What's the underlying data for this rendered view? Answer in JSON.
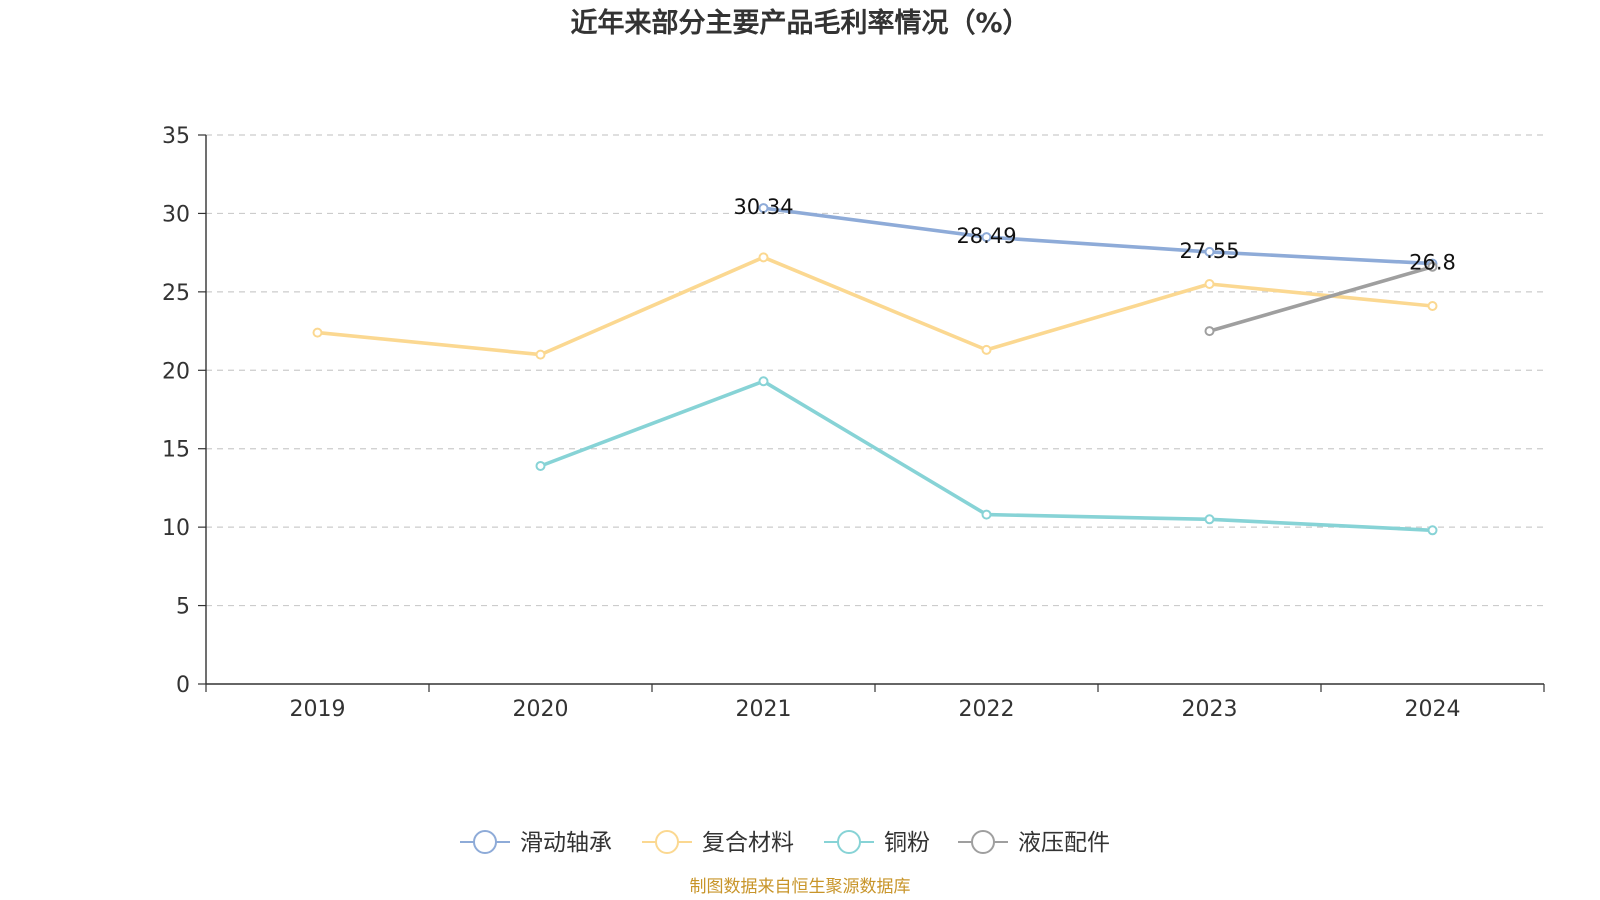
{
  "chart_data": {
    "type": "line",
    "title": "近年来部分主要产品毛利率情况（%）",
    "categories": [
      "2019",
      "2020",
      "2021",
      "2022",
      "2023",
      "2024"
    ],
    "ylim": [
      0,
      35
    ],
    "yticks": [
      0,
      5,
      10,
      15,
      20,
      25,
      30,
      35
    ],
    "grid": true,
    "legend_position": "bottom",
    "series": [
      {
        "name": "滑动轴承",
        "color": "#8eabd8",
        "values": [
          null,
          null,
          30.34,
          28.49,
          27.55,
          26.8
        ],
        "labels": [
          "",
          "",
          "30.34",
          "28.49",
          "27.55",
          "26.8"
        ]
      },
      {
        "name": "复合材料",
        "color": "#fbd891",
        "values": [
          22.4,
          21.0,
          27.2,
          21.3,
          25.5,
          24.1
        ],
        "labels": [
          "",
          "",
          "",
          "",
          "",
          ""
        ]
      },
      {
        "name": "铜粉",
        "color": "#87d3d6",
        "values": [
          null,
          13.9,
          19.3,
          10.8,
          10.5,
          9.8
        ],
        "labels": [
          "",
          "",
          "",
          "",
          "",
          ""
        ]
      },
      {
        "name": "液压配件",
        "color": "#9f9f9f",
        "values": [
          null,
          null,
          null,
          null,
          22.5,
          26.6
        ],
        "labels": [
          "",
          "",
          "",
          "",
          "",
          ""
        ]
      }
    ],
    "source": "制图数据来自恒生聚源数据库",
    "source_color": "#c8952a"
  }
}
